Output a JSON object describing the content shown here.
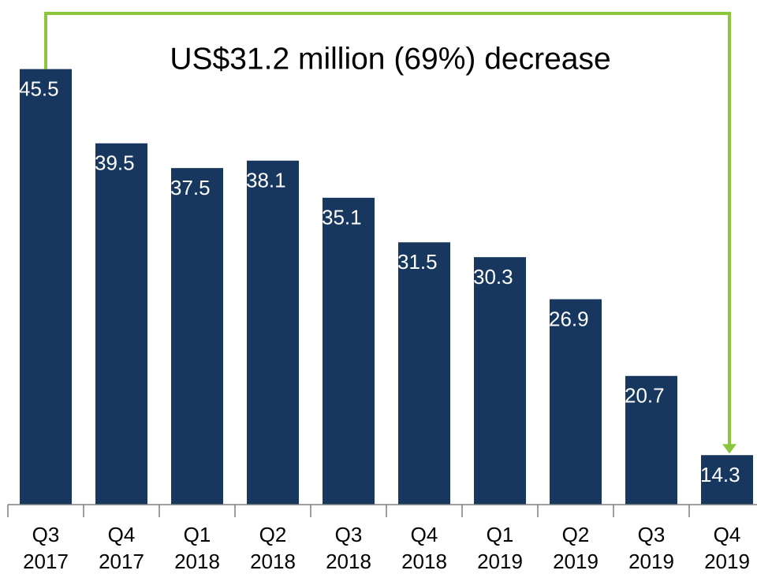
{
  "chart_data": {
    "type": "bar",
    "annotation": "US$31.2 million (69%) decrease",
    "categories": [
      "Q3 2017",
      "Q4 2017",
      "Q1 2018",
      "Q2 2018",
      "Q3 2018",
      "Q4 2018",
      "Q1 2019",
      "Q2 2019",
      "Q3 2019",
      "Q4 2019"
    ],
    "values": [
      45.5,
      39.5,
      37.5,
      38.1,
      35.1,
      31.5,
      30.3,
      26.9,
      20.7,
      14.3
    ],
    "color": "#17375e",
    "label_color": "#ffffff",
    "annotation_color": "#8cc63f",
    "ylim": [
      10.3,
      50
    ]
  }
}
